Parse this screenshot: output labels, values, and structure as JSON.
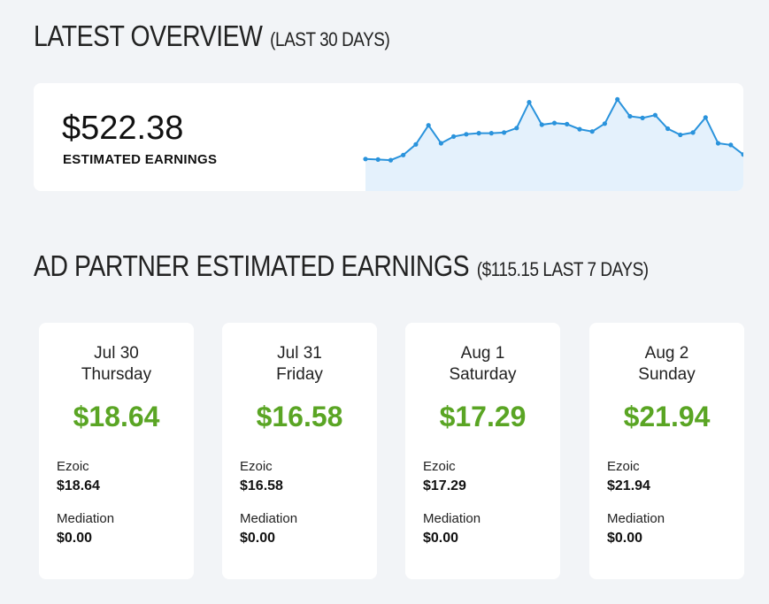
{
  "overview": {
    "title": "LATEST OVERVIEW",
    "subtitle": "(LAST 30 DAYS)",
    "amount": "$522.38",
    "amount_label": "ESTIMATED EARNINGS",
    "sparkline_color": "#2a93dc",
    "sparkline_fill": "#e4f1fc"
  },
  "chart_data": {
    "type": "area",
    "title": "",
    "xlabel": "",
    "ylabel": "",
    "grid": false,
    "values": [
      11.7,
      11.6,
      11.5,
      12.4,
      14.3,
      17.7,
      14.5,
      15.7,
      16.1,
      16.3,
      16.3,
      16.4,
      17.2,
      21.8,
      17.8,
      18.1,
      17.9,
      17.0,
      16.6,
      18.0,
      22.3,
      19.3,
      19.0,
      19.5,
      17.1,
      16.0,
      16.4,
      19.1,
      14.5,
      14.2,
      12.5
    ]
  },
  "partner": {
    "title": "AD PARTNER ESTIMATED EARNINGS",
    "subtitle": "($115.15 LAST 7 DAYS)"
  },
  "days": [
    {
      "date": "Jul 30",
      "weekday": "Thursday",
      "total": "$18.64",
      "ezoic_label": "Ezoic",
      "ezoic_value": "$18.64",
      "mediation_label": "Mediation",
      "mediation_value": "$0.00"
    },
    {
      "date": "Jul 31",
      "weekday": "Friday",
      "total": "$16.58",
      "ezoic_label": "Ezoic",
      "ezoic_value": "$16.58",
      "mediation_label": "Mediation",
      "mediation_value": "$0.00"
    },
    {
      "date": "Aug 1",
      "weekday": "Saturday",
      "total": "$17.29",
      "ezoic_label": "Ezoic",
      "ezoic_value": "$17.29",
      "mediation_label": "Mediation",
      "mediation_value": "$0.00"
    },
    {
      "date": "Aug 2",
      "weekday": "Sunday",
      "total": "$21.94",
      "ezoic_label": "Ezoic",
      "ezoic_value": "$21.94",
      "mediation_label": "Mediation",
      "mediation_value": "$0.00"
    }
  ],
  "accent_green": "#5aa524"
}
